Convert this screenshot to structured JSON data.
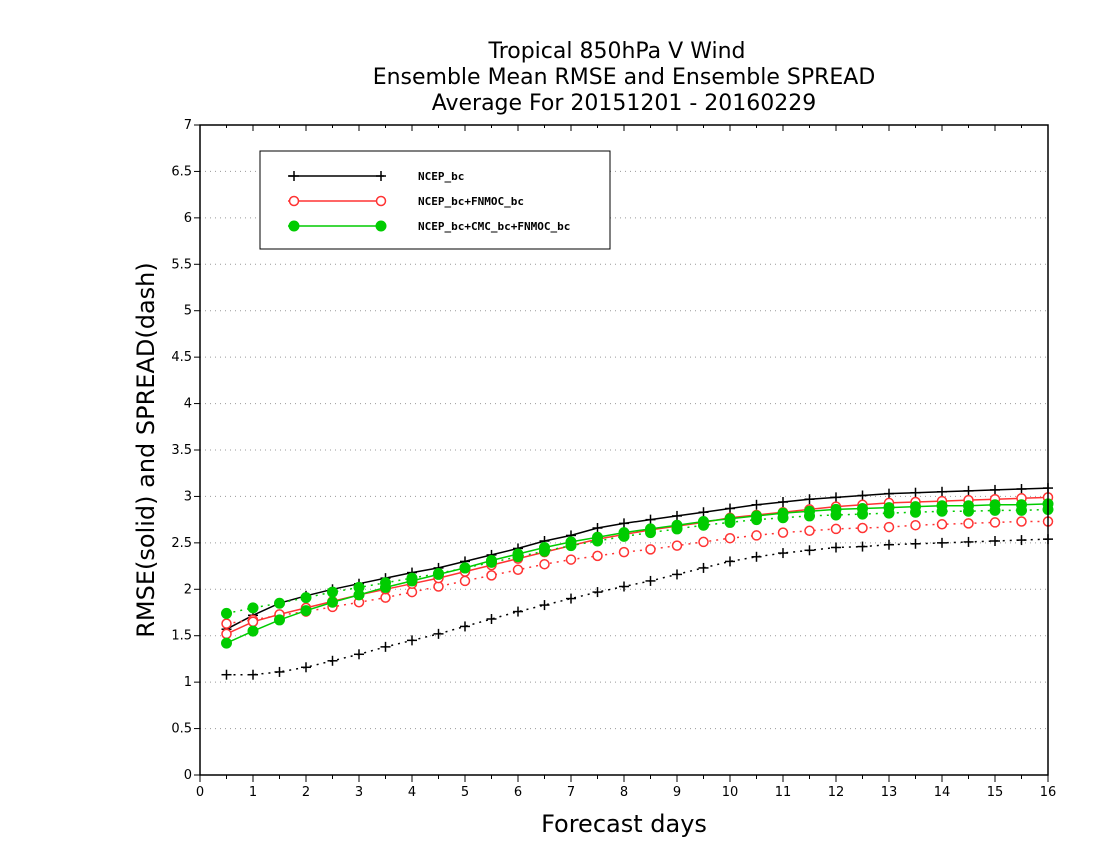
{
  "chart_data": {
    "type": "line",
    "title": [
      "Tropical 850hPa V Wind",
      "Ensemble Mean RMSE and Ensemble SPREAD",
      "Average For 20151201 - 20160229"
    ],
    "xlabel": "Forecast days",
    "ylabel": "RMSE(solid) and SPREAD(dash)",
    "xlim": [
      0,
      16
    ],
    "ylim": [
      0,
      7
    ],
    "xticks": [
      "0",
      "1",
      "2",
      "3",
      "4",
      "5",
      "6",
      "7",
      "8",
      "9",
      "10",
      "11",
      "12",
      "13",
      "14",
      "15",
      "16"
    ],
    "yticks": [
      "0",
      "0.5",
      "1",
      "1.5",
      "2",
      "2.5",
      "3",
      "3.5",
      "4",
      "4.5",
      "5",
      "5.5",
      "6",
      "6.5",
      "7"
    ],
    "grid": "horizontal dotted",
    "legend_position": "top-left",
    "x": [
      0.5,
      1,
      1.5,
      2,
      2.5,
      3,
      3.5,
      4,
      4.5,
      5,
      5.5,
      6,
      6.5,
      7,
      7.5,
      8,
      8.5,
      9,
      9.5,
      10,
      10.5,
      11,
      11.5,
      12,
      12.5,
      13,
      13.5,
      14,
      14.5,
      15,
      15.5,
      16
    ],
    "series": [
      {
        "name": "NCEP_bc",
        "color": "#000000",
        "marker": "plus",
        "rmse": [
          1.57,
          1.72,
          1.85,
          1.93,
          2.0,
          2.06,
          2.12,
          2.18,
          2.23,
          2.3,
          2.37,
          2.44,
          2.52,
          2.58,
          2.66,
          2.71,
          2.75,
          2.79,
          2.83,
          2.87,
          2.91,
          2.94,
          2.97,
          2.99,
          3.01,
          3.03,
          3.04,
          3.05,
          3.06,
          3.07,
          3.08,
          3.09
        ],
        "spread": [
          1.08,
          1.08,
          1.11,
          1.16,
          1.23,
          1.3,
          1.38,
          1.45,
          1.52,
          1.6,
          1.68,
          1.76,
          1.83,
          1.9,
          1.97,
          2.03,
          2.09,
          2.16,
          2.23,
          2.3,
          2.35,
          2.39,
          2.42,
          2.45,
          2.46,
          2.48,
          2.49,
          2.5,
          2.51,
          2.52,
          2.53,
          2.54
        ]
      },
      {
        "name": "NCEP_bc+FNMOC_bc",
        "color": "#ff3333",
        "marker": "open-circle",
        "rmse": [
          1.52,
          1.65,
          1.73,
          1.8,
          1.87,
          1.94,
          2.0,
          2.06,
          2.12,
          2.19,
          2.26,
          2.33,
          2.4,
          2.47,
          2.54,
          2.59,
          2.64,
          2.68,
          2.72,
          2.77,
          2.8,
          2.83,
          2.86,
          2.89,
          2.91,
          2.93,
          2.94,
          2.95,
          2.96,
          2.97,
          2.98,
          2.99
        ],
        "spread": [
          1.63,
          1.67,
          1.72,
          1.76,
          1.81,
          1.86,
          1.91,
          1.97,
          2.03,
          2.09,
          2.15,
          2.21,
          2.27,
          2.32,
          2.36,
          2.4,
          2.43,
          2.47,
          2.51,
          2.55,
          2.58,
          2.61,
          2.63,
          2.65,
          2.66,
          2.67,
          2.69,
          2.7,
          2.71,
          2.72,
          2.73,
          2.73
        ]
      },
      {
        "name": "NCEP_bc+CMC_bc+FNMOC_bc",
        "color": "#00cc00",
        "marker": "filled-circle",
        "rmse": [
          1.42,
          1.55,
          1.67,
          1.77,
          1.86,
          1.94,
          2.02,
          2.09,
          2.16,
          2.23,
          2.31,
          2.38,
          2.45,
          2.51,
          2.56,
          2.61,
          2.65,
          2.69,
          2.73,
          2.76,
          2.79,
          2.82,
          2.84,
          2.86,
          2.87,
          2.88,
          2.89,
          2.9,
          2.9,
          2.91,
          2.91,
          2.92
        ],
        "spread": [
          1.74,
          1.8,
          1.85,
          1.91,
          1.97,
          2.02,
          2.07,
          2.12,
          2.17,
          2.23,
          2.29,
          2.35,
          2.41,
          2.47,
          2.52,
          2.57,
          2.61,
          2.65,
          2.69,
          2.72,
          2.75,
          2.77,
          2.79,
          2.8,
          2.81,
          2.82,
          2.83,
          2.84,
          2.84,
          2.85,
          2.85,
          2.86
        ]
      }
    ]
  }
}
